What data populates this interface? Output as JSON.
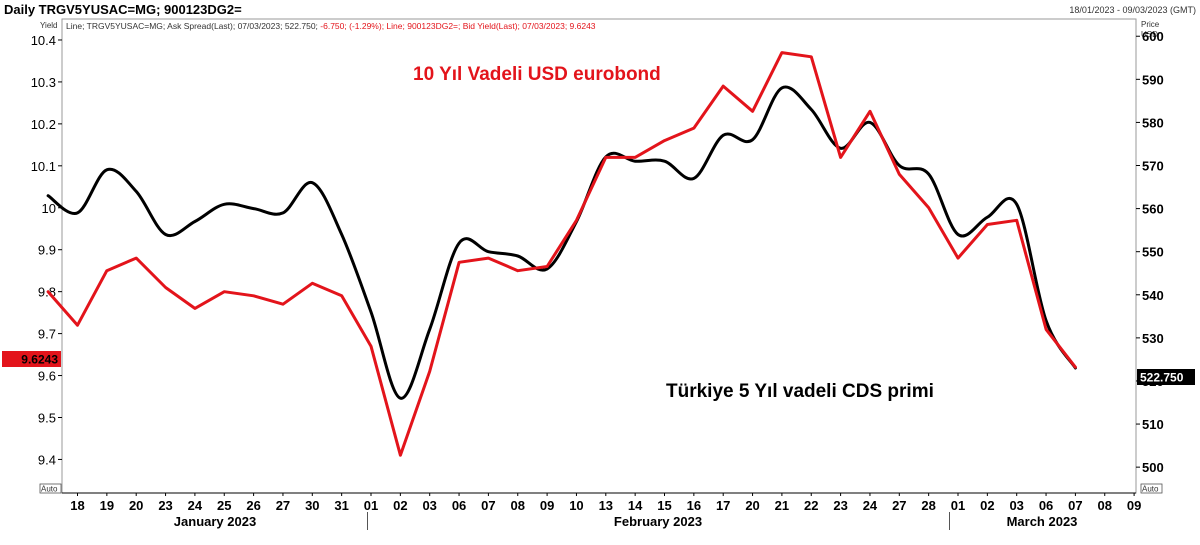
{
  "header": {
    "title": "Daily TRGV5YUSAC=MG; 900123DG2=",
    "date_range": "18/01/2023 - 09/03/2023 (GMT)",
    "legend_line_1": "Line; TRGV5YUSAC=MG; Ask Spread(Last); 07/03/2023; 522.750; ",
    "legend_change": "-6.750; (-1.29%); ",
    "legend_line_2": "Line; 900123DG2=; Bid Yield(Last); 07/03/2023; 9.6243"
  },
  "left_axis": {
    "label": "Yield",
    "auto_label": "Auto"
  },
  "right_axis": {
    "label_1": "Price",
    "label_2": "USD",
    "auto_label": "Auto"
  },
  "annotations": {
    "eurobond": "10 Yıl Vadeli USD eurobond",
    "cds": "Türkiye 5 Yıl vadeli CDS primi"
  },
  "last_values": {
    "yield": "9.6243",
    "cds": "522.750"
  },
  "colors": {
    "yield_line": "#e3141b",
    "cds_line": "#000000",
    "yield_tag": "#e3141b",
    "cds_tag": "#000000"
  },
  "chart_data": {
    "type": "line",
    "x_tick_labels": [
      "18",
      "19",
      "20",
      "23",
      "24",
      "25",
      "26",
      "27",
      "30",
      "31",
      "01",
      "02",
      "03",
      "06",
      "07",
      "08",
      "09",
      "10",
      "13",
      "14",
      "15",
      "16",
      "17",
      "20",
      "21",
      "22",
      "23",
      "24",
      "27",
      "28",
      "01",
      "02",
      "03",
      "06",
      "07",
      "08",
      "09"
    ],
    "month_labels": [
      "January 2023",
      "February 2023",
      "March 2023"
    ],
    "left_ylim": [
      9.32,
      10.45
    ],
    "left_ticks": [
      "9.4",
      "9.5",
      "9.6",
      "9.7",
      "9.8",
      "9.9",
      "10",
      "10.1",
      "10.2",
      "10.3",
      "10.4"
    ],
    "right_ylim": [
      494,
      604
    ],
    "right_ticks": [
      "500",
      "510",
      "520",
      "530",
      "540",
      "550",
      "560",
      "570",
      "580",
      "590",
      "600"
    ],
    "series": [
      {
        "axis": "left",
        "x": [
          "2023-01-17",
          "2023-01-18",
          "2023-01-19",
          "2023-01-20",
          "2023-01-23",
          "2023-01-24",
          "2023-01-25",
          "2023-01-26",
          "2023-01-27",
          "2023-01-30",
          "2023-01-31",
          "2023-02-01",
          "2023-02-02",
          "2023-02-03",
          "2023-02-06",
          "2023-02-07",
          "2023-02-08",
          "2023-02-09",
          "2023-02-10",
          "2023-02-13",
          "2023-02-14",
          "2023-02-15",
          "2023-02-16",
          "2023-02-17",
          "2023-02-20",
          "2023-02-21",
          "2023-02-22",
          "2023-02-23",
          "2023-02-24",
          "2023-02-27",
          "2023-02-28",
          "2023-03-01",
          "2023-03-02",
          "2023-03-03",
          "2023-03-06",
          "2023-03-07"
        ],
        "values": [
          9.8,
          9.72,
          9.85,
          9.88,
          9.81,
          9.76,
          9.8,
          9.79,
          9.77,
          9.82,
          9.79,
          9.67,
          9.41,
          9.61,
          9.87,
          9.88,
          9.85,
          9.86,
          9.97,
          10.12,
          10.12,
          10.16,
          10.19,
          10.29,
          10.23,
          10.37,
          10.36,
          10.12,
          10.23,
          10.08,
          10.0,
          9.88,
          9.96,
          9.97,
          9.71,
          9.62
        ]
      },
      {
        "axis": "right",
        "x": [
          "2023-01-17",
          "2023-01-18",
          "2023-01-19",
          "2023-01-20",
          "2023-01-23",
          "2023-01-24",
          "2023-01-25",
          "2023-01-26",
          "2023-01-27",
          "2023-01-30",
          "2023-01-31",
          "2023-02-01",
          "2023-02-02",
          "2023-02-03",
          "2023-02-06",
          "2023-02-07",
          "2023-02-08",
          "2023-02-09",
          "2023-02-10",
          "2023-02-13",
          "2023-02-14",
          "2023-02-15",
          "2023-02-16",
          "2023-02-17",
          "2023-02-20",
          "2023-02-21",
          "2023-02-22",
          "2023-02-23",
          "2023-02-24",
          "2023-02-27",
          "2023-02-28",
          "2023-03-01",
          "2023-03-02",
          "2023-03-03",
          "2023-03-06",
          "2023-03-07"
        ],
        "values": [
          563,
          559,
          569,
          564,
          554,
          557,
          561,
          560,
          559,
          566,
          554,
          536,
          516,
          532,
          552,
          550,
          549,
          546,
          557,
          572,
          571,
          571,
          567,
          577,
          576,
          588,
          583,
          574,
          580,
          570,
          568,
          554,
          558,
          561,
          534,
          523
        ]
      }
    ]
  }
}
